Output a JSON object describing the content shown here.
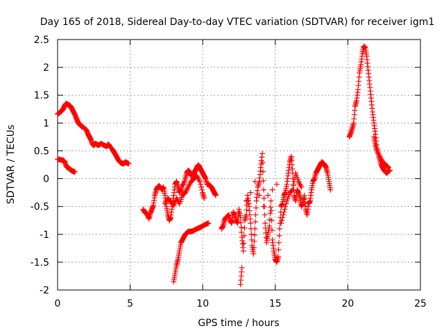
{
  "chart_data": {
    "type": "scatter",
    "title": "Day 165 of 2018, Sidereal Day-to-day VTEC variation (SDTVAR) for receiver igm1",
    "xlabel": "GPS time / hours",
    "ylabel": "SDTVAR / TECUs",
    "xlim": [
      0,
      25
    ],
    "ylim": [
      -2,
      2.5
    ],
    "grid": true,
    "legend": "none",
    "marker": "+",
    "color": "#ff0000",
    "x_ticks": [
      "0",
      "5",
      "10",
      "15",
      "20",
      "25"
    ],
    "y_ticks": [
      "-2",
      "-1.5",
      "-1",
      "-0.5",
      "0",
      "0.5",
      "1",
      "1.5",
      "2",
      "2.5"
    ],
    "series": [
      {
        "name": "seg-a",
        "points": [
          [
            0.0,
            0.35
          ],
          [
            0.2,
            0.34
          ],
          [
            0.4,
            0.33
          ],
          [
            0.5,
            0.3
          ],
          [
            0.6,
            0.22
          ],
          [
            0.7,
            0.2
          ],
          [
            0.8,
            0.18
          ],
          [
            0.9,
            0.16
          ],
          [
            1.0,
            0.14
          ],
          [
            1.1,
            0.13
          ],
          [
            1.2,
            0.12
          ]
        ]
      },
      {
        "name": "seg-b",
        "points": [
          [
            0.0,
            1.16
          ],
          [
            0.1,
            1.18
          ],
          [
            0.2,
            1.2
          ],
          [
            0.3,
            1.22
          ],
          [
            0.4,
            1.26
          ],
          [
            0.5,
            1.32
          ],
          [
            0.6,
            1.35
          ],
          [
            0.7,
            1.33
          ],
          [
            0.8,
            1.32
          ],
          [
            0.9,
            1.3
          ],
          [
            1.0,
            1.25
          ],
          [
            1.1,
            1.2
          ],
          [
            1.2,
            1.15
          ],
          [
            1.3,
            1.08
          ],
          [
            1.4,
            1.02
          ],
          [
            1.5,
            0.98
          ],
          [
            1.6,
            0.95
          ],
          [
            1.8,
            0.92
          ],
          [
            2.0,
            0.87
          ],
          [
            2.1,
            0.8
          ],
          [
            2.2,
            0.75
          ],
          [
            2.3,
            0.7
          ],
          [
            2.4,
            0.62
          ],
          [
            2.5,
            0.6
          ],
          [
            2.6,
            0.63
          ],
          [
            2.7,
            0.62
          ],
          [
            2.8,
            0.6
          ],
          [
            3.0,
            0.63
          ],
          [
            3.2,
            0.6
          ],
          [
            3.4,
            0.58
          ],
          [
            3.5,
            0.62
          ],
          [
            3.6,
            0.58
          ],
          [
            3.8,
            0.52
          ],
          [
            3.9,
            0.47
          ],
          [
            4.0,
            0.43
          ],
          [
            4.1,
            0.38
          ],
          [
            4.2,
            0.33
          ],
          [
            4.3,
            0.3
          ],
          [
            4.4,
            0.28
          ],
          [
            4.5,
            0.27
          ],
          [
            4.6,
            0.28
          ],
          [
            4.7,
            0.3
          ],
          [
            4.8,
            0.28
          ],
          [
            4.9,
            0.27
          ]
        ]
      },
      {
        "name": "seg-c",
        "points": [
          [
            5.9,
            -0.55
          ],
          [
            6.0,
            -0.6
          ],
          [
            6.1,
            -0.62
          ],
          [
            6.2,
            -0.65
          ],
          [
            6.3,
            -0.72
          ],
          [
            6.4,
            -0.62
          ],
          [
            6.5,
            -0.55
          ],
          [
            6.6,
            -0.48
          ],
          [
            6.7,
            -0.3
          ],
          [
            6.8,
            -0.2
          ],
          [
            6.9,
            -0.15
          ],
          [
            7.0,
            -0.13
          ],
          [
            7.1,
            -0.16
          ],
          [
            7.2,
            -0.2
          ],
          [
            7.3,
            -0.15
          ],
          [
            7.4,
            -0.3
          ],
          [
            7.5,
            -0.5
          ],
          [
            7.6,
            -0.65
          ],
          [
            7.7,
            -0.75
          ],
          [
            7.8,
            -0.7
          ],
          [
            7.9,
            -0.5
          ],
          [
            8.0,
            -0.3
          ],
          [
            8.1,
            -0.1
          ],
          [
            8.2,
            -0.05
          ],
          [
            8.3,
            -0.15
          ],
          [
            8.4,
            -0.25
          ],
          [
            8.5,
            -0.2
          ],
          [
            8.6,
            -0.1
          ],
          [
            8.7,
            -0.1
          ],
          [
            8.8,
            0.0
          ],
          [
            8.9,
            0.1
          ],
          [
            9.0,
            0.15
          ],
          [
            9.1,
            0.12
          ],
          [
            9.2,
            0.05
          ],
          [
            9.3,
            0.08
          ],
          [
            9.4,
            0.1
          ],
          [
            9.5,
            0.15
          ],
          [
            9.6,
            0.2
          ],
          [
            9.7,
            0.25
          ],
          [
            9.8,
            0.2
          ],
          [
            9.9,
            0.15
          ],
          [
            10.0,
            0.1
          ],
          [
            10.1,
            0.05
          ],
          [
            10.2,
            0.0
          ],
          [
            10.3,
            -0.1
          ],
          [
            10.5,
            -0.12
          ],
          [
            10.6,
            -0.15
          ],
          [
            10.7,
            -0.2
          ],
          [
            10.8,
            -0.25
          ],
          [
            10.9,
            -0.3
          ],
          [
            7.4,
            -0.45
          ],
          [
            7.6,
            -0.35
          ],
          [
            7.8,
            -0.42
          ],
          [
            8.0,
            -0.48
          ],
          [
            8.2,
            -0.35
          ],
          [
            8.4,
            -0.45
          ],
          [
            8.6,
            -0.3
          ],
          [
            8.8,
            -0.25
          ],
          [
            9.0,
            -0.15
          ],
          [
            9.2,
            -0.05
          ],
          [
            9.4,
            0.0
          ],
          [
            9.6,
            0.05
          ],
          [
            9.8,
            -0.05
          ],
          [
            10.0,
            -0.25
          ],
          [
            10.1,
            -0.35
          ]
        ]
      },
      {
        "name": "seg-d",
        "points": [
          [
            8.0,
            -1.85
          ],
          [
            8.1,
            -1.7
          ],
          [
            8.2,
            -1.55
          ],
          [
            8.3,
            -1.45
          ],
          [
            8.4,
            -1.3
          ],
          [
            8.5,
            -1.15
          ],
          [
            8.6,
            -1.1
          ],
          [
            8.7,
            -1.05
          ],
          [
            8.8,
            -1.0
          ],
          [
            8.9,
            -0.98
          ],
          [
            9.0,
            -0.95
          ],
          [
            9.2,
            -0.95
          ],
          [
            9.4,
            -0.93
          ],
          [
            9.6,
            -0.9
          ],
          [
            9.8,
            -0.88
          ],
          [
            10.0,
            -0.85
          ],
          [
            10.2,
            -0.82
          ],
          [
            10.4,
            -0.8
          ]
        ]
      },
      {
        "name": "seg-e",
        "points": [
          [
            11.3,
            -0.9
          ],
          [
            11.4,
            -0.85
          ],
          [
            11.5,
            -0.75
          ],
          [
            11.6,
            -0.7
          ],
          [
            11.7,
            -0.68
          ],
          [
            11.8,
            -0.65
          ],
          [
            11.9,
            -0.75
          ],
          [
            12.0,
            -0.8
          ],
          [
            12.1,
            -0.6
          ],
          [
            12.2,
            -0.65
          ],
          [
            12.3,
            -0.75
          ],
          [
            12.4,
            -0.8
          ],
          [
            12.5,
            -0.55
          ],
          [
            12.6,
            -0.7
          ],
          [
            12.7,
            -1.05
          ],
          [
            12.8,
            -1.3
          ],
          [
            12.9,
            -0.75
          ],
          [
            13.0,
            -0.65
          ],
          [
            13.1,
            -0.3
          ],
          [
            13.2,
            -0.5
          ],
          [
            13.3,
            -0.8
          ],
          [
            13.4,
            -1.2
          ],
          [
            13.5,
            -1.35
          ],
          [
            13.6,
            -0.9
          ],
          [
            13.7,
            -0.4
          ],
          [
            13.8,
            -0.15
          ],
          [
            13.9,
            -0.05
          ],
          [
            14.0,
            0.2
          ],
          [
            14.1,
            0.45
          ],
          [
            14.2,
            -0.2
          ],
          [
            14.3,
            -0.8
          ],
          [
            14.4,
            -1.15
          ],
          [
            14.5,
            -1.0
          ],
          [
            14.6,
            -0.85
          ],
          [
            14.7,
            -0.4
          ],
          [
            14.8,
            -1.1
          ],
          [
            14.9,
            -1.3
          ],
          [
            15.0,
            -1.45
          ],
          [
            15.1,
            -1.5
          ],
          [
            15.2,
            -1.4
          ],
          [
            15.3,
            -0.9
          ],
          [
            15.4,
            -0.5
          ],
          [
            15.5,
            -0.45
          ],
          [
            15.6,
            -0.3
          ],
          [
            15.7,
            -0.25
          ],
          [
            15.8,
            -0.1
          ],
          [
            15.9,
            0.1
          ],
          [
            16.0,
            0.3
          ],
          [
            16.1,
            0.4
          ],
          [
            16.2,
            0.1
          ],
          [
            16.3,
            -0.3
          ],
          [
            16.4,
            -0.4
          ],
          [
            16.5,
            -0.2
          ],
          [
            16.6,
            -0.25
          ],
          [
            16.7,
            -0.35
          ],
          [
            16.8,
            -0.5
          ],
          [
            16.9,
            -0.45
          ],
          [
            17.0,
            -0.3
          ],
          [
            17.1,
            -0.55
          ],
          [
            17.2,
            -0.65
          ],
          [
            17.3,
            -0.45
          ],
          [
            17.4,
            -0.4
          ],
          [
            17.5,
            -0.2
          ],
          [
            17.6,
            -0.05
          ],
          [
            17.7,
            0.0
          ],
          [
            17.8,
            0.1
          ],
          [
            17.9,
            0.15
          ],
          [
            18.0,
            0.2
          ],
          [
            18.1,
            0.25
          ],
          [
            18.2,
            0.3
          ],
          [
            18.3,
            0.28
          ],
          [
            18.4,
            0.25
          ],
          [
            18.5,
            0.2
          ],
          [
            18.6,
            0.1
          ],
          [
            18.7,
            -0.05
          ],
          [
            18.8,
            -0.2
          ],
          [
            12.6,
            -1.9
          ],
          [
            12.7,
            -1.6
          ],
          [
            13.0,
            -0.4
          ],
          [
            13.3,
            -0.25
          ],
          [
            13.6,
            -0.05
          ],
          [
            13.9,
            -0.3
          ],
          [
            14.2,
            -0.5
          ],
          [
            14.5,
            -0.3
          ],
          [
            14.8,
            -0.2
          ],
          [
            15.1,
            -0.1
          ],
          [
            15.4,
            -0.8
          ],
          [
            15.6,
            -0.6
          ],
          [
            15.8,
            -0.4
          ],
          [
            16.0,
            -0.25
          ],
          [
            16.2,
            -0.2
          ],
          [
            16.4,
            0.1
          ],
          [
            16.6,
            -0.05
          ],
          [
            16.8,
            -0.15
          ]
        ]
      },
      {
        "name": "seg-f",
        "points": [
          [
            20.1,
            0.75
          ],
          [
            20.2,
            0.82
          ],
          [
            20.3,
            0.9
          ],
          [
            20.4,
            1.0
          ],
          [
            20.5,
            1.3
          ],
          [
            20.6,
            1.4
          ],
          [
            20.7,
            1.6
          ],
          [
            20.8,
            1.9
          ],
          [
            20.9,
            2.05
          ],
          [
            21.0,
            2.25
          ],
          [
            21.1,
            2.38
          ],
          [
            21.2,
            2.35
          ],
          [
            21.3,
            2.2
          ],
          [
            21.4,
            1.95
          ],
          [
            21.5,
            1.7
          ],
          [
            21.6,
            1.45
          ],
          [
            21.7,
            1.2
          ],
          [
            21.8,
            1.0
          ],
          [
            21.9,
            0.8
          ],
          [
            22.0,
            0.55
          ],
          [
            22.1,
            0.45
          ],
          [
            22.2,
            0.35
          ],
          [
            22.3,
            0.25
          ],
          [
            22.4,
            0.2
          ],
          [
            22.5,
            0.15
          ],
          [
            22.6,
            0.12
          ],
          [
            22.7,
            0.1
          ],
          [
            22.8,
            0.14
          ],
          [
            22.9,
            0.15
          ],
          [
            21.8,
            0.75
          ],
          [
            21.9,
            0.6
          ],
          [
            22.0,
            0.5
          ],
          [
            22.2,
            0.4
          ],
          [
            22.4,
            0.3
          ],
          [
            22.6,
            0.25
          ],
          [
            22.8,
            0.2
          ]
        ]
      }
    ]
  }
}
